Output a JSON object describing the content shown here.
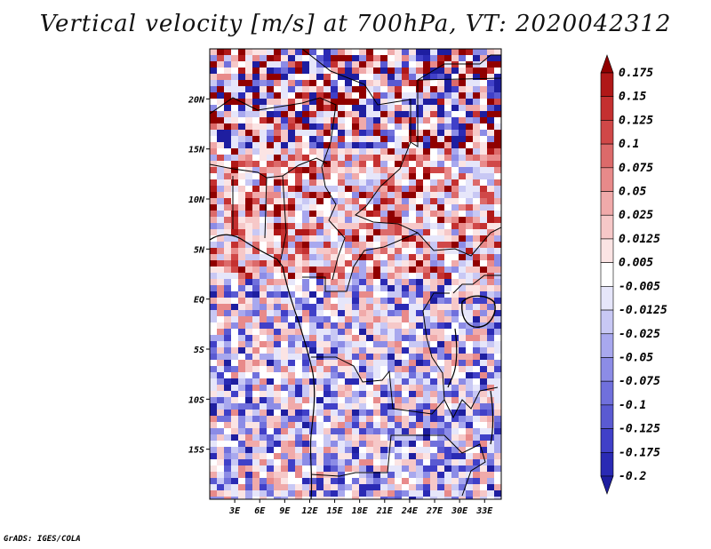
{
  "title": "Vertical velocity [m/s] at 700hPa, VT: 2020042312",
  "footer": "GrADS: IGES/COLA",
  "map": {
    "lon_range": [
      0,
      35
    ],
    "lat_range": [
      -20,
      25
    ],
    "lat_ticks": [
      {
        "value": 20,
        "label": "20N"
      },
      {
        "value": 15,
        "label": "15N"
      },
      {
        "value": 10,
        "label": "10N"
      },
      {
        "value": 5,
        "label": "5N"
      },
      {
        "value": 0,
        "label": "EQ"
      },
      {
        "value": -5,
        "label": "5S"
      },
      {
        "value": -10,
        "label": "10S"
      },
      {
        "value": -15,
        "label": "15S"
      }
    ],
    "lon_ticks": [
      {
        "value": 3,
        "label": "3E"
      },
      {
        "value": 6,
        "label": "6E"
      },
      {
        "value": 9,
        "label": "9E"
      },
      {
        "value": 12,
        "label": "12E"
      },
      {
        "value": 15,
        "label": "15E"
      },
      {
        "value": 18,
        "label": "18E"
      },
      {
        "value": 21,
        "label": "21E"
      },
      {
        "value": 24,
        "label": "24E"
      },
      {
        "value": 27,
        "label": "27E"
      },
      {
        "value": 30,
        "label": "30E"
      },
      {
        "value": 33,
        "label": "33E"
      }
    ]
  },
  "colorbar": {
    "colors": [
      "#1e1ea0",
      "#2a2ab4",
      "#4040c8",
      "#5a5ad2",
      "#7070dc",
      "#8c8ce6",
      "#a8a8ee",
      "#c8c8f4",
      "#e6e6fa",
      "#ffffff",
      "#fbe4e4",
      "#f6c8c8",
      "#f0aaaa",
      "#e88a8a",
      "#dc6a6a",
      "#d04848",
      "#c43030",
      "#b01818",
      "#900000"
    ],
    "labels": [
      "-0.2",
      "-0.175",
      "-0.125",
      "-0.1",
      "-0.075",
      "-0.05",
      "-0.025",
      "-0.0125",
      "-0.005",
      "0.005",
      "0.0125",
      "0.025",
      "0.05",
      "0.075",
      "0.1",
      "0.125",
      "0.15",
      "0.175"
    ]
  }
}
